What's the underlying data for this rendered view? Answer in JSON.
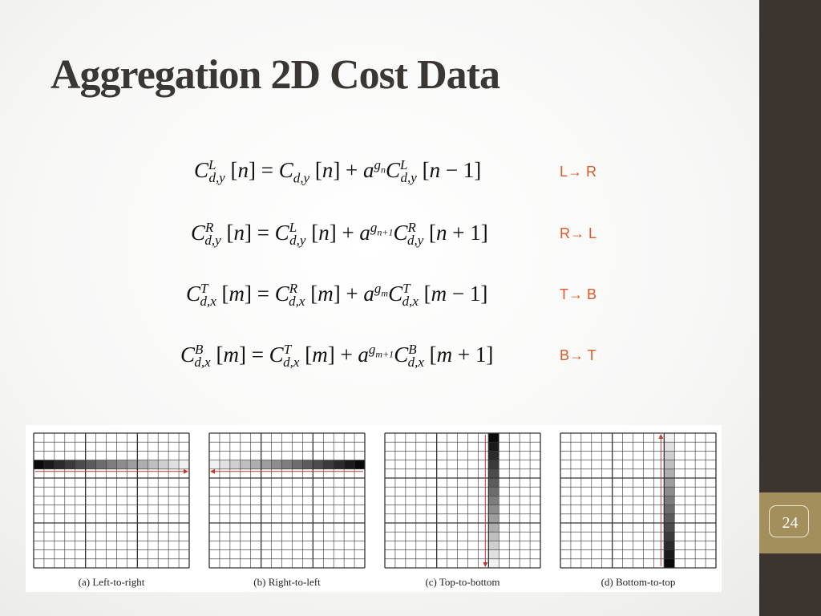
{
  "slide": {
    "title": "Aggregation 2D Cost Data",
    "page_number": "24"
  },
  "equations": [
    {
      "text": "C^L_{d,y}[n] = C_{d,y}[n] + a^{g_n} C^L_{d,y}[n − 1]",
      "direction": "L→ R"
    },
    {
      "text": "C^R_{d,y}[n] = C^L_{d,y}[n] + a^{g_{n+1}} C^R_{d,y}[n + 1]",
      "direction": "R→ L"
    },
    {
      "text": "C^T_{d,x}[m] = C^R_{d,x}[m] + a^{g_m} C^T_{d,x}[m − 1]",
      "direction": "T→ B"
    },
    {
      "text": "C^B_{d,x}[m] = C^T_{d,x}[m] + a^{g_{m+1}} C^B_{d,x}[m + 1]",
      "direction": "B→ T"
    }
  ],
  "figures": [
    {
      "caption": "(a) Left-to-right",
      "orientation": "horizontal",
      "arrow": "right"
    },
    {
      "caption": "(b) Right-to-left",
      "orientation": "horizontal",
      "arrow": "left"
    },
    {
      "caption": "(c) Top-to-bottom",
      "orientation": "vertical",
      "arrow": "down"
    },
    {
      "caption": "(d) Bottom-to-top",
      "orientation": "vertical",
      "arrow": "up"
    }
  ],
  "colors": {
    "sidebar": "#3b342f",
    "page_badge": "#a38f5c",
    "direction_text": "#e0572a",
    "title_text": "#3a3633",
    "arrow": "#c0392b"
  }
}
